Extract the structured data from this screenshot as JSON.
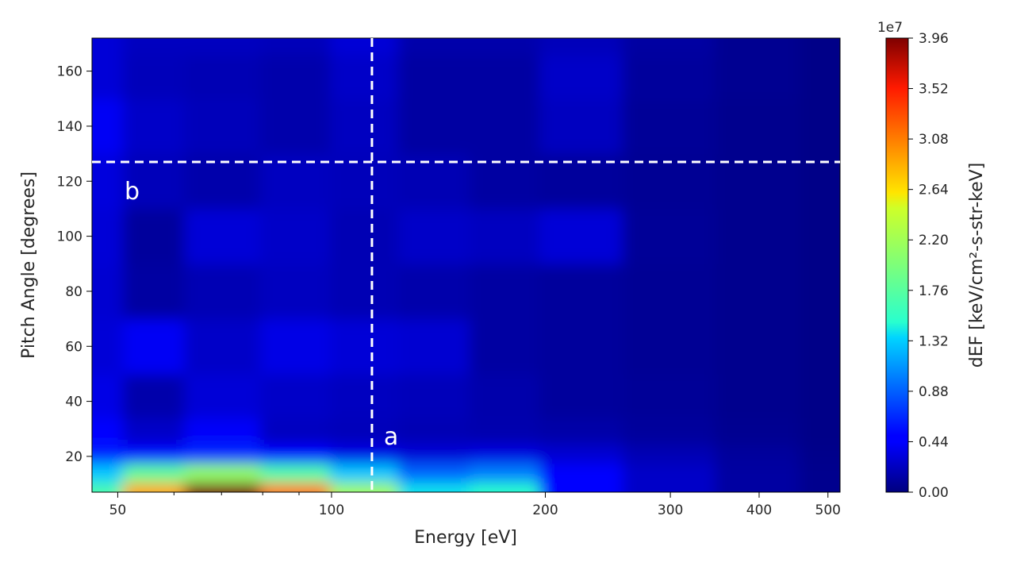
{
  "chart_data": {
    "type": "heatmap",
    "title": "",
    "xlabel": "Energy [eV]",
    "ylabel": "Pitch Angle [degrees]",
    "x_scale": "log",
    "xlim": [
      46,
      520
    ],
    "ylim": [
      7,
      172
    ],
    "x_ticks": [
      {
        "value": 50,
        "label": "50"
      },
      {
        "value": 100,
        "label": "100"
      },
      {
        "value": 200,
        "label": "200"
      },
      {
        "value": 300,
        "label": "300"
      },
      {
        "value": 400,
        "label": "400"
      },
      {
        "value": 500,
        "label": "500"
      }
    ],
    "y_ticks": [
      {
        "value": 20,
        "label": "20"
      },
      {
        "value": 40,
        "label": "40"
      },
      {
        "value": 60,
        "label": "60"
      },
      {
        "value": 80,
        "label": "80"
      },
      {
        "value": 100,
        "label": "100"
      },
      {
        "value": 120,
        "label": "120"
      },
      {
        "value": 140,
        "label": "140"
      },
      {
        "value": 160,
        "label": "160"
      }
    ],
    "energy": [
      47,
      55,
      70,
      90,
      110,
      140,
      175,
      220,
      300,
      400,
      520
    ],
    "pitch": [
      7,
      14,
      21,
      28,
      40,
      60,
      80,
      100,
      120,
      140,
      160,
      172
    ],
    "z": [
      [
        17000000.0,
        29000000.0,
        39600000.0,
        31000000.0,
        22000000.0,
        14000000.0,
        15000000.0,
        5000000.0,
        2500000.0,
        1200000.0,
        500000.0
      ],
      [
        13000000.0,
        18000000.0,
        21000000.0,
        17000000.0,
        13000000.0,
        9000000.0,
        10000000.0,
        4500000.0,
        2500000.0,
        1200000.0,
        500000.0
      ],
      [
        6000000.0,
        5500000.0,
        6500000.0,
        4500000.0,
        3500000.0,
        3000000.0,
        3300000.0,
        2800000.0,
        1800000.0,
        1000000.0,
        400000.0
      ],
      [
        4500000.0,
        2500000.0,
        4200000.0,
        2200000.0,
        2000000.0,
        1800000.0,
        1600000.0,
        1400000.0,
        1000000.0,
        600000.0,
        300000.0
      ],
      [
        3500000.0,
        1500000.0,
        3000000.0,
        2500000.0,
        2200000.0,
        2000000.0,
        1500000.0,
        1000000.0,
        800000.0,
        500000.0,
        300000.0
      ],
      [
        3000000.0,
        4000000.0,
        2500000.0,
        3500000.0,
        3000000.0,
        2800000.0,
        1200000.0,
        1000000.0,
        700000.0,
        500000.0,
        300000.0
      ],
      [
        2800000.0,
        1200000.0,
        1800000.0,
        2200000.0,
        1800000.0,
        1500000.0,
        1200000.0,
        1000000.0,
        700000.0,
        500000.0,
        300000.0
      ],
      [
        3000000.0,
        1000000.0,
        3000000.0,
        2500000.0,
        1800000.0,
        2500000.0,
        2200000.0,
        3000000.0,
        800000.0,
        500000.0,
        300000.0
      ],
      [
        3200000.0,
        2000000.0,
        1500000.0,
        2200000.0,
        2000000.0,
        1800000.0,
        1200000.0,
        1000000.0,
        700000.0,
        500000.0,
        300000.0
      ],
      [
        4000000.0,
        2500000.0,
        2000000.0,
        1500000.0,
        2200000.0,
        1200000.0,
        1200000.0,
        2200000.0,
        800000.0,
        500000.0,
        300000.0
      ],
      [
        3000000.0,
        2000000.0,
        1800000.0,
        1500000.0,
        2500000.0,
        1200000.0,
        1200000.0,
        2500000.0,
        1000000.0,
        600000.0,
        300000.0
      ],
      [
        3000000.0,
        2200000.0,
        2200000.0,
        2000000.0,
        3000000.0,
        1500000.0,
        1500000.0,
        2000000.0,
        1200000.0,
        600000.0,
        300000.0
      ]
    ],
    "colorbar": {
      "label": "dEF [keV/cm²-s-str-keV]",
      "multiplier": "1e7",
      "min": 0,
      "max": 3.96,
      "ticks": [
        "0.00",
        "0.44",
        "0.88",
        "1.32",
        "1.76",
        "2.20",
        "2.64",
        "3.08",
        "3.52",
        "3.96"
      ],
      "colormap": "jet"
    },
    "guide_lines": [
      {
        "orientation": "vertical",
        "energy": 114,
        "label": "a"
      },
      {
        "orientation": "horizontal",
        "pitch": 127,
        "label": "b"
      }
    ]
  }
}
